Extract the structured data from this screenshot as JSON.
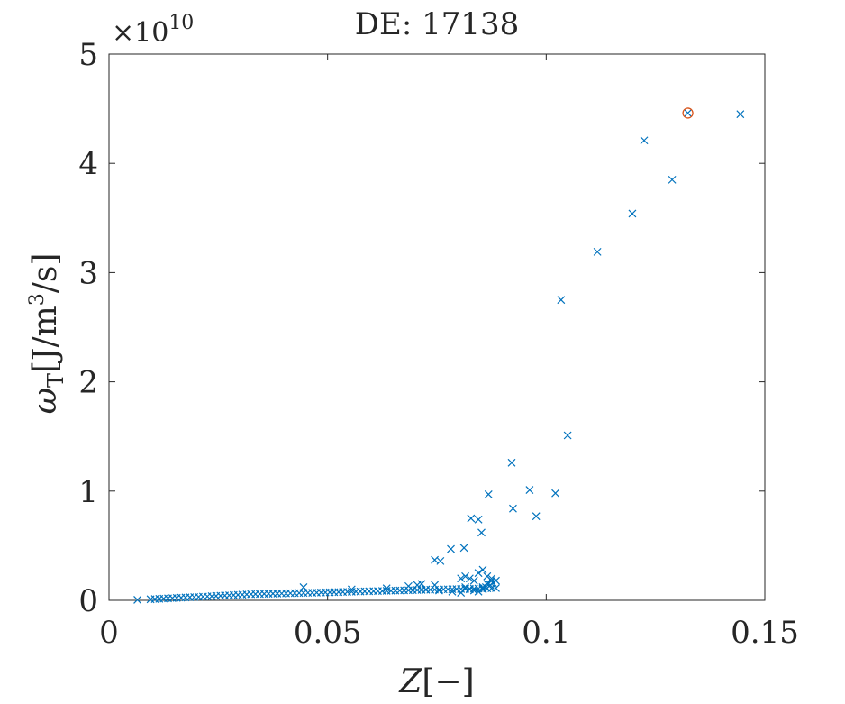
{
  "chart_data": {
    "type": "scatter",
    "title": "DE: 17138",
    "xlabel": "Z[−]",
    "ylabel": "ωT[J/m3/s]",
    "ylabel_parts": {
      "symbol": "ω",
      "subscript": "T",
      "unit_main": "[J/m",
      "unit_sup": "3",
      "unit_end": "/s]"
    },
    "xlabel_parts": {
      "symbol": "Z",
      "rest": "[−]"
    },
    "y_exponent": {
      "base": "×10",
      "power": "10"
    },
    "xlim": [
      0,
      0.15
    ],
    "ylim": [
      0,
      5
    ],
    "x_ticks": [
      0,
      0.05,
      0.1,
      0.15
    ],
    "x_tick_labels": [
      "0",
      "0.05",
      "0.1",
      "0.15"
    ],
    "y_ticks": [
      0,
      1,
      2,
      3,
      4,
      5
    ],
    "y_tick_labels": [
      "0",
      "1",
      "2",
      "3",
      "4",
      "5"
    ],
    "grid": false,
    "series_color": "#0072BD",
    "highlight_color": "#D95319",
    "series": [
      {
        "marker": "x",
        "x": [
          0.0065,
          0.0095,
          0.0105,
          0.0115,
          0.0125,
          0.0135,
          0.0145,
          0.0155,
          0.0165,
          0.0175,
          0.0185,
          0.0195,
          0.0205,
          0.0215,
          0.0225,
          0.0235,
          0.0245,
          0.0255,
          0.0265,
          0.0275,
          0.0285,
          0.0295,
          0.0305,
          0.0315,
          0.0325,
          0.0335,
          0.0345,
          0.0355,
          0.0365,
          0.0375,
          0.0385,
          0.0395,
          0.0405,
          0.0415,
          0.0425,
          0.0435,
          0.0445,
          0.0455,
          0.0465,
          0.0475,
          0.0485,
          0.0495,
          0.0505,
          0.0515,
          0.0525,
          0.0535,
          0.0545,
          0.0555,
          0.0565,
          0.0575,
          0.0585,
          0.0595,
          0.0605,
          0.0615,
          0.0625,
          0.0635,
          0.0645,
          0.0655,
          0.0665,
          0.0675,
          0.0685,
          0.0695,
          0.0705,
          0.0715,
          0.0725,
          0.0735,
          0.0745,
          0.0755,
          0.0765,
          0.0775,
          0.0785,
          0.0795,
          0.0805,
          0.0815,
          0.0825,
          0.0835,
          0.0845,
          0.0855,
          0.0865,
          0.0875,
          0.0885,
          0.0445,
          0.0555,
          0.0635,
          0.0685,
          0.0715,
          0.0745,
          0.0755,
          0.0785,
          0.0805,
          0.0815,
          0.0825,
          0.0835,
          0.0845,
          0.0855,
          0.0862,
          0.0872,
          0.0878,
          0.0885,
          0.0705,
          0.0725,
          0.0805,
          0.0815,
          0.0825,
          0.0835,
          0.0845,
          0.0855,
          0.0865,
          0.0875,
          0.0855,
          0.0865,
          0.0875,
          0.0745,
          0.0758,
          0.0782,
          0.0812,
          0.0828,
          0.0845,
          0.0852,
          0.0868,
          0.0921,
          0.0924,
          0.0962,
          0.0977,
          0.1021,
          0.1034,
          0.1049,
          0.1117,
          0.1197,
          0.1224,
          0.1288,
          0.1324,
          0.1444
        ],
        "y": [
          0.005,
          0.01,
          0.012,
          0.014,
          0.016,
          0.018,
          0.02,
          0.022,
          0.024,
          0.026,
          0.028,
          0.03,
          0.032,
          0.034,
          0.036,
          0.038,
          0.04,
          0.042,
          0.044,
          0.046,
          0.048,
          0.05,
          0.052,
          0.054,
          0.056,
          0.057,
          0.058,
          0.059,
          0.06,
          0.061,
          0.062,
          0.063,
          0.064,
          0.065,
          0.066,
          0.067,
          0.068,
          0.069,
          0.07,
          0.071,
          0.072,
          0.073,
          0.074,
          0.075,
          0.076,
          0.077,
          0.078,
          0.079,
          0.08,
          0.081,
          0.082,
          0.083,
          0.084,
          0.085,
          0.086,
          0.087,
          0.088,
          0.089,
          0.09,
          0.091,
          0.092,
          0.093,
          0.094,
          0.095,
          0.096,
          0.097,
          0.098,
          0.099,
          0.1,
          0.101,
          0.102,
          0.103,
          0.104,
          0.105,
          0.106,
          0.107,
          0.108,
          0.109,
          0.11,
          0.111,
          0.112,
          0.12,
          0.1,
          0.11,
          0.13,
          0.15,
          0.14,
          0.09,
          0.08,
          0.07,
          0.12,
          0.1,
          0.09,
          0.08,
          0.1,
          0.12,
          0.14,
          0.16,
          0.18,
          0.14,
          0.1,
          0.2,
          0.22,
          0.2,
          0.18,
          0.25,
          0.28,
          0.22,
          0.2,
          0.12,
          0.15,
          0.18,
          0.37,
          0.36,
          0.47,
          0.48,
          0.75,
          0.74,
          0.62,
          0.97,
          1.26,
          0.84,
          1.01,
          0.77,
          0.98,
          2.75,
          1.51,
          3.19,
          3.54,
          4.21,
          3.85,
          4.46,
          4.45
        ]
      }
    ],
    "highlight_point": {
      "x": 0.1324,
      "y": 4.46,
      "marker": "o"
    }
  }
}
